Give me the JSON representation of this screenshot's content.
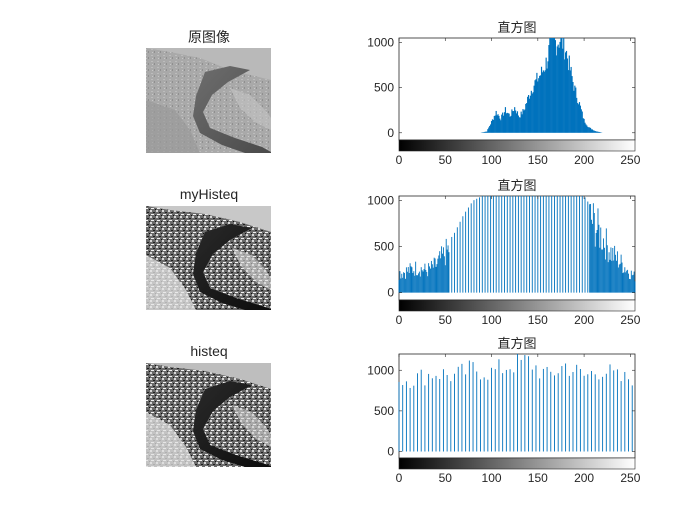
{
  "figure": {
    "panels": [
      {
        "title": "原图像",
        "image": "aerial-river-original"
      },
      {
        "title": "myHisteq",
        "image": "aerial-river-myhisteq"
      },
      {
        "title": "histeq",
        "image": "aerial-river-histeq"
      }
    ]
  },
  "colors": {
    "bar": "#0072bd",
    "axis": "#262626",
    "background": "#ffffff"
  },
  "chart_data": [
    {
      "type": "bar",
      "title": "直方图",
      "xlim": [
        0,
        255
      ],
      "ylim": [
        -80,
        1050
      ],
      "xticks": [
        0,
        50,
        100,
        150,
        200,
        250
      ],
      "yticks": [
        0,
        500,
        1000
      ],
      "profile": "smooth",
      "anchors": [
        [
          0,
          0
        ],
        [
          88,
          0
        ],
        [
          95,
          15
        ],
        [
          100,
          120
        ],
        [
          105,
          230
        ],
        [
          110,
          160
        ],
        [
          115,
          250
        ],
        [
          120,
          190
        ],
        [
          125,
          280
        ],
        [
          130,
          180
        ],
        [
          135,
          250
        ],
        [
          140,
          400
        ],
        [
          145,
          520
        ],
        [
          150,
          600
        ],
        [
          155,
          680
        ],
        [
          160,
          800
        ],
        [
          165,
          1050
        ],
        [
          170,
          1000
        ],
        [
          175,
          1050
        ],
        [
          180,
          930
        ],
        [
          185,
          700
        ],
        [
          190,
          480
        ],
        [
          195,
          320
        ],
        [
          200,
          140
        ],
        [
          205,
          60
        ],
        [
          212,
          20
        ],
        [
          220,
          0
        ],
        [
          255,
          0
        ]
      ],
      "colorbar": "gray"
    },
    {
      "type": "bar",
      "title": "直方图",
      "xlim": [
        0,
        255
      ],
      "ylim": [
        -80,
        1050
      ],
      "xticks": [
        0,
        50,
        100,
        150,
        200,
        250
      ],
      "yticks": [
        0,
        500,
        1000
      ],
      "profile": "spiky",
      "anchors": [
        [
          0,
          250
        ],
        [
          10,
          280
        ],
        [
          20,
          320
        ],
        [
          30,
          280
        ],
        [
          40,
          350
        ],
        [
          50,
          500
        ],
        [
          60,
          650
        ],
        [
          70,
          850
        ],
        [
          80,
          1000
        ],
        [
          90,
          1050
        ],
        [
          100,
          1050
        ],
        [
          150,
          1050
        ],
        [
          200,
          1050
        ],
        [
          210,
          900
        ],
        [
          220,
          700
        ],
        [
          230,
          500
        ],
        [
          240,
          380
        ],
        [
          250,
          250
        ],
        [
          255,
          200
        ]
      ],
      "colorbar": "gray"
    },
    {
      "type": "bar",
      "title": "直方图",
      "xlim": [
        0,
        255
      ],
      "ylim": [
        -80,
        1200
      ],
      "xticks": [
        0,
        50,
        100,
        150,
        200,
        250
      ],
      "yticks": [
        0,
        500,
        1000
      ],
      "profile": "sparse",
      "anchors": [
        [
          0,
          950
        ],
        [
          20,
          980
        ],
        [
          40,
          1050
        ],
        [
          60,
          1000
        ],
        [
          80,
          1100
        ],
        [
          100,
          1050
        ],
        [
          120,
          1150
        ],
        [
          140,
          1200
        ],
        [
          160,
          1000
        ],
        [
          180,
          1150
        ],
        [
          200,
          1000
        ],
        [
          220,
          1100
        ],
        [
          240,
          950
        ],
        [
          255,
          1000
        ]
      ],
      "colorbar": "gray"
    }
  ]
}
